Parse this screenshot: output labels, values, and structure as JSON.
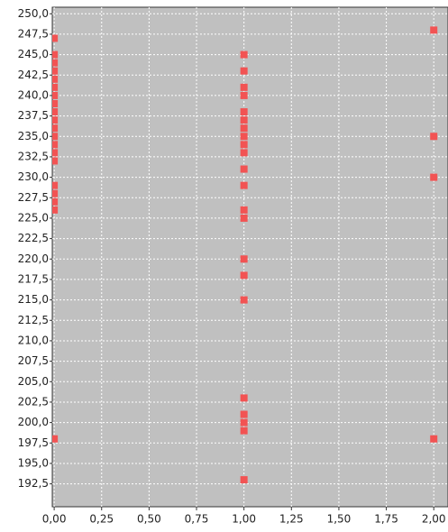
{
  "chart_data": {
    "type": "scatter",
    "x": [
      0,
      0,
      0,
      0,
      0,
      0,
      0,
      0,
      0,
      0,
      0,
      0,
      0,
      0,
      0,
      0,
      0,
      0,
      0,
      0,
      1,
      1,
      1,
      1,
      1,
      1,
      1,
      1,
      1,
      1,
      1,
      1,
      1,
      1,
      1,
      1,
      1,
      1,
      1,
      1,
      1,
      1,
      2,
      2,
      2,
      2
    ],
    "values": [
      247,
      245,
      244,
      243,
      242,
      241,
      240,
      239,
      238,
      237,
      236,
      235,
      234,
      233,
      232,
      229,
      228,
      227,
      226,
      198,
      245,
      243,
      241,
      240,
      238,
      237,
      236,
      235,
      234,
      233,
      231,
      229,
      226,
      225,
      220,
      218,
      215,
      203,
      201,
      200,
      199,
      193,
      248,
      235,
      230,
      198
    ],
    "color": "#f25353",
    "xlim": [
      -0.01,
      2.075
    ],
    "ylim": [
      189.7,
      250.8
    ],
    "xticks": [
      {
        "value": 0,
        "label": "0,00"
      },
      {
        "value": 0.25,
        "label": "0,25"
      },
      {
        "value": 0.5,
        "label": "0,50"
      },
      {
        "value": 0.75,
        "label": "0,75"
      },
      {
        "value": 1,
        "label": "1,00"
      },
      {
        "value": 1.25,
        "label": "1,25"
      },
      {
        "value": 1.5,
        "label": "1,50"
      },
      {
        "value": 1.75,
        "label": "1,75"
      },
      {
        "value": 2,
        "label": "2,00"
      }
    ],
    "yticks": [
      {
        "value": 192.5,
        "label": "192,5"
      },
      {
        "value": 195,
        "label": "195,0"
      },
      {
        "value": 197.5,
        "label": "197,5"
      },
      {
        "value": 200,
        "label": "200,0"
      },
      {
        "value": 202.5,
        "label": "202,5"
      },
      {
        "value": 205,
        "label": "205,0"
      },
      {
        "value": 207.5,
        "label": "207,5"
      },
      {
        "value": 210,
        "label": "210,0"
      },
      {
        "value": 212.5,
        "label": "212,5"
      },
      {
        "value": 215,
        "label": "215,0"
      },
      {
        "value": 217.5,
        "label": "217,5"
      },
      {
        "value": 220,
        "label": "220,0"
      },
      {
        "value": 222.5,
        "label": "222,5"
      },
      {
        "value": 225,
        "label": "225,0"
      },
      {
        "value": 227.5,
        "label": "227,5"
      },
      {
        "value": 230,
        "label": "230,0"
      },
      {
        "value": 232.5,
        "label": "232,5"
      },
      {
        "value": 235,
        "label": "235,0"
      },
      {
        "value": 237.5,
        "label": "237,5"
      },
      {
        "value": 240,
        "label": "240,0"
      },
      {
        "value": 242.5,
        "label": "242,5"
      },
      {
        "value": 245,
        "label": "245,0"
      },
      {
        "value": 247.5,
        "label": "247,5"
      },
      {
        "value": 250,
        "label": "250,0"
      }
    ],
    "grid": true
  }
}
